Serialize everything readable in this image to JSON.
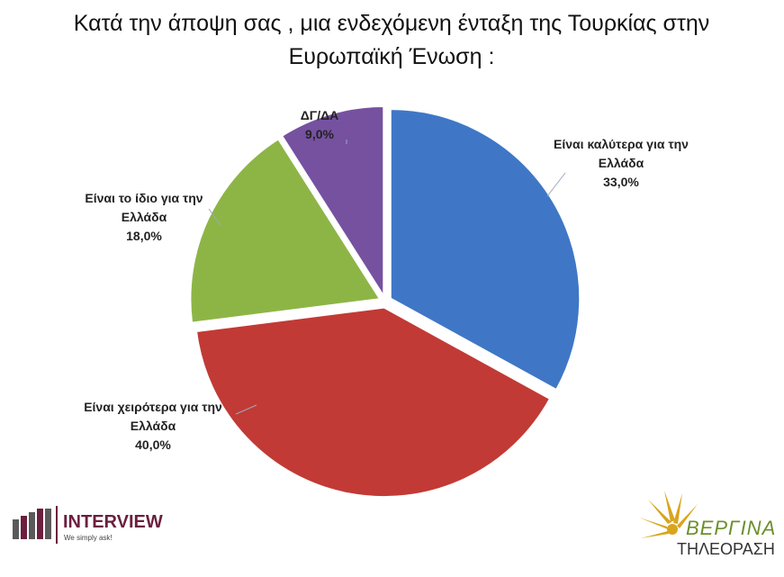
{
  "chart_data": {
    "type": "pie",
    "title": "Κατά την άποψη σας , μια ενδεχόμενη ένταξη της Τουρκίας στην Ευρωπαϊκή Ένωση :",
    "categories": [
      "Είναι καλύτερα για την Ελλάδα",
      "Είναι χειρότερα για την Ελλάδα",
      "Είναι το ίδιο για την Ελλάδα",
      "ΔΓ/ΔΑ"
    ],
    "values": [
      33,
      40,
      18,
      9
    ],
    "value_labels": [
      "33,0%",
      "40,0%",
      "18,0%",
      "9,0%"
    ],
    "colors": [
      "#3f77c6",
      "#c23a35",
      "#8db546",
      "#7651a0"
    ]
  },
  "logos": {
    "interview": {
      "name": "INTERVIEW",
      "tagline": "We simply ask!"
    },
    "vergina": {
      "name": "ΒΕΡΓΙΝΑ",
      "subtitle": "ΤΗΛΕΟΡΑΣΗ"
    }
  }
}
